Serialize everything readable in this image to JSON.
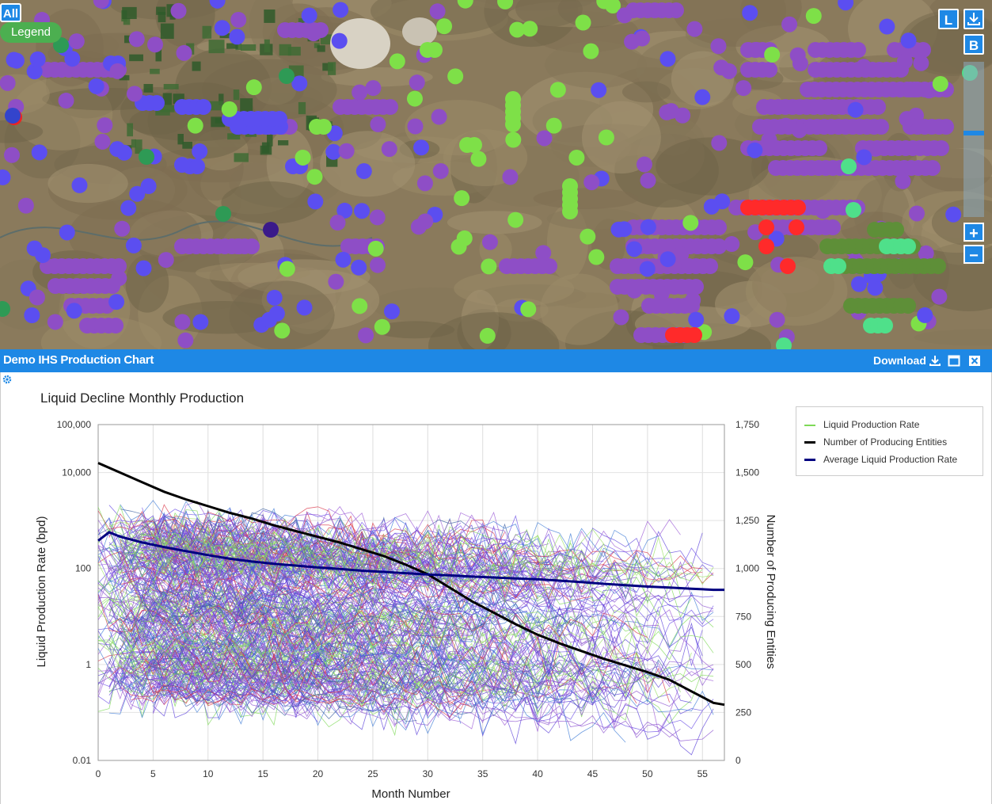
{
  "map": {
    "all_label": "All",
    "legend_label": "Legend",
    "layers_label": "L",
    "basemap_label": "B",
    "zoom_in_label": "+",
    "zoom_out_label": "−",
    "colors": {
      "purple": "#8e4ec6",
      "blue": "#5b4ef0",
      "green": "#7ee048",
      "teal": "#4fe08a",
      "olive": "#5e8f38",
      "red": "#ff2a2a",
      "darkgreen": "#2e9a55"
    }
  },
  "panel": {
    "title": "Demo IHS Production Chart",
    "download_label": "Download"
  },
  "chart_data": {
    "type": "line",
    "title": "Liquid Decline Monthly Production",
    "xlabel": "Month Number",
    "ylabel": "Liquid Production Rate (bpd)",
    "y2label": "Number of Producing Entities",
    "xlim": [
      0,
      57
    ],
    "ylim": [
      0.01,
      100000
    ],
    "yscale": "log",
    "y2lim": [
      0,
      1750
    ],
    "x_ticks": [
      0,
      5,
      10,
      15,
      20,
      25,
      30,
      35,
      40,
      45,
      50,
      55
    ],
    "y_ticks": [
      {
        "value": 0.01,
        "label": "0.01"
      },
      {
        "value": 1,
        "label": "1"
      },
      {
        "value": 100,
        "label": "100"
      },
      {
        "value": 10000,
        "label": "10,000"
      },
      {
        "value": 100000,
        "label": "100,000"
      }
    ],
    "y2_ticks": [
      {
        "value": 0,
        "label": "0"
      },
      {
        "value": 250,
        "label": "250"
      },
      {
        "value": 500,
        "label": "500"
      },
      {
        "value": 750,
        "label": "750"
      },
      {
        "value": 1000,
        "label": "1,000"
      },
      {
        "value": 1250,
        "label": "1,250"
      },
      {
        "value": 1500,
        "label": "1,500"
      },
      {
        "value": 1750,
        "label": "1,750"
      }
    ],
    "grid": true,
    "legend_position": "top-right",
    "legend": [
      {
        "label": "Liquid Production Rate",
        "color": "#7ed957"
      },
      {
        "label": "Number of Producing Entities",
        "color": "#000000"
      },
      {
        "label": "Average Liquid Production Rate",
        "color": "#000080"
      }
    ],
    "series": [
      {
        "name": "Number of Producing Entities",
        "axis": "y2",
        "color": "#000000",
        "x": [
          0,
          2,
          4,
          6,
          8,
          10,
          12,
          14,
          16,
          18,
          20,
          22,
          24,
          26,
          28,
          30,
          32,
          34,
          36,
          38,
          40,
          42,
          44,
          46,
          48,
          50,
          52,
          54,
          56,
          57
        ],
        "values": [
          1550,
          1500,
          1450,
          1400,
          1360,
          1325,
          1290,
          1260,
          1225,
          1195,
          1165,
          1135,
          1100,
          1065,
          1020,
          970,
          900,
          830,
          770,
          710,
          655,
          610,
          570,
          530,
          495,
          460,
          420,
          360,
          300,
          290
        ]
      },
      {
        "name": "Average Liquid Production Rate",
        "axis": "y",
        "color": "#000080",
        "x": [
          0,
          1,
          2,
          4,
          6,
          8,
          10,
          12,
          14,
          16,
          18,
          20,
          22,
          24,
          26,
          28,
          30,
          32,
          34,
          36,
          38,
          40,
          42,
          44,
          46,
          48,
          50,
          52,
          54,
          56,
          57
        ],
        "values": [
          380,
          570,
          460,
          350,
          280,
          230,
          190,
          160,
          140,
          125,
          115,
          105,
          98,
          90,
          85,
          80,
          75,
          72,
          68,
          65,
          62,
          60,
          56,
          52,
          48,
          45,
          42,
          40,
          38,
          36,
          36
        ]
      }
    ],
    "well_traces_note": "individual well liquid production traces (hundreds of thin lines, purple/green/blue/red)"
  }
}
